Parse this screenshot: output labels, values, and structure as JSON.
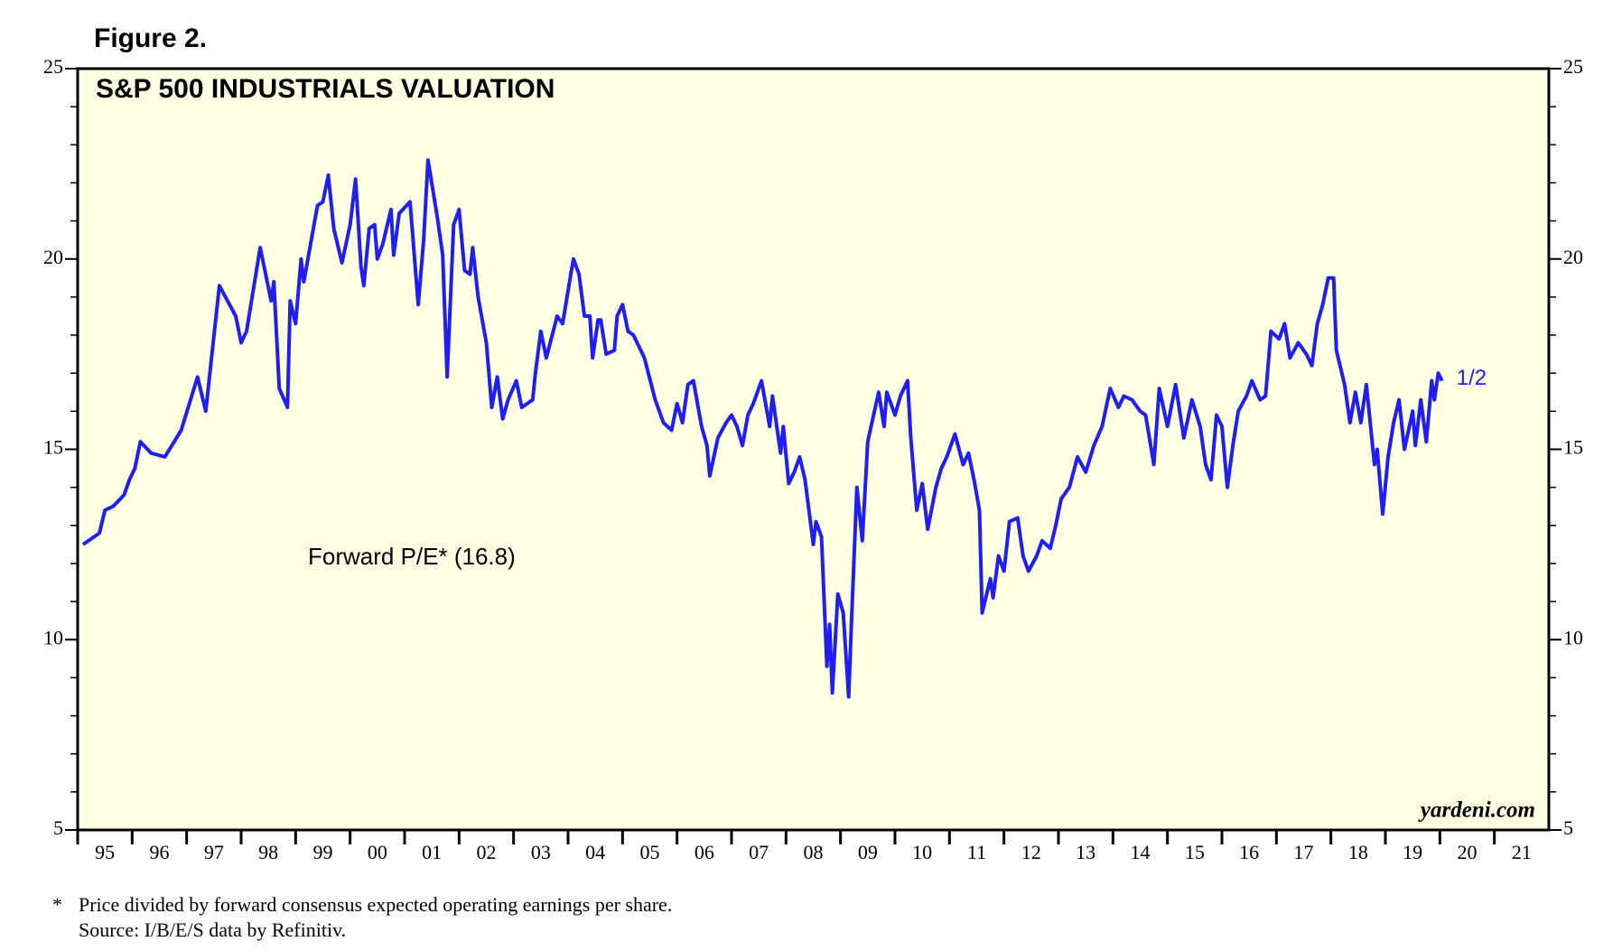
{
  "figure_label": "Figure 2.",
  "chart_data": {
    "type": "line",
    "title": "S&P 500 INDUSTRIALS VALUATION",
    "annotation": "Forward P/E* (16.8)",
    "end_label": "1/2",
    "credit": "yardeni.com",
    "color": "#1f1ff5",
    "background": "#ffffe3",
    "xlim": [
      1995,
      2022
    ],
    "xticks": [
      {
        "value": 1995,
        "label": "95"
      },
      {
        "value": 1996,
        "label": "96"
      },
      {
        "value": 1997,
        "label": "97"
      },
      {
        "value": 1998,
        "label": "98"
      },
      {
        "value": 1999,
        "label": "99"
      },
      {
        "value": 2000,
        "label": "00"
      },
      {
        "value": 2001,
        "label": "01"
      },
      {
        "value": 2002,
        "label": "02"
      },
      {
        "value": 2003,
        "label": "03"
      },
      {
        "value": 2004,
        "label": "04"
      },
      {
        "value": 2005,
        "label": "05"
      },
      {
        "value": 2006,
        "label": "06"
      },
      {
        "value": 2007,
        "label": "07"
      },
      {
        "value": 2008,
        "label": "08"
      },
      {
        "value": 2009,
        "label": "09"
      },
      {
        "value": 2010,
        "label": "10"
      },
      {
        "value": 2011,
        "label": "11"
      },
      {
        "value": 2012,
        "label": "12"
      },
      {
        "value": 2013,
        "label": "13"
      },
      {
        "value": 2014,
        "label": "14"
      },
      {
        "value": 2015,
        "label": "15"
      },
      {
        "value": 2016,
        "label": "16"
      },
      {
        "value": 2017,
        "label": "17"
      },
      {
        "value": 2018,
        "label": "18"
      },
      {
        "value": 2019,
        "label": "19"
      },
      {
        "value": 2020,
        "label": "20"
      },
      {
        "value": 2021,
        "label": "21"
      }
    ],
    "ylim": [
      5,
      25
    ],
    "yticks": [
      5,
      10,
      15,
      20,
      25
    ],
    "x": [
      1995.1,
      1995.4,
      1995.5,
      1995.65,
      1995.85,
      1995.95,
      1996.05,
      1996.15,
      1996.35,
      1996.6,
      1996.9,
      1997.2,
      1997.35,
      1997.6,
      1997.9,
      1998,
      1998.1,
      1998.35,
      1998.55,
      1998.6,
      1998.7,
      1998.85,
      1998.9,
      1999,
      1999.1,
      1999.15,
      1999.4,
      1999.5,
      1999.6,
      1999.7,
      1999.85,
      2000,
      2000.1,
      2000.2,
      2000.25,
      2000.35,
      2000.45,
      2000.5,
      2000.6,
      2000.75,
      2000.8,
      2000.9,
      2001.1,
      2001.25,
      2001.35,
      2001.43,
      2001.6,
      2001.7,
      2001.78,
      2001.9,
      2002,
      2002.1,
      2002.2,
      2002.25,
      2002.35,
      2002.5,
      2002.6,
      2002.7,
      2002.8,
      2002.9,
      2003.05,
      2003.15,
      2003.35,
      2003.4,
      2003.5,
      2003.6,
      2003.8,
      2003.9,
      2004.05,
      2004.1,
      2004.2,
      2004.3,
      2004.4,
      2004.45,
      2004.55,
      2004.6,
      2004.7,
      2004.85,
      2004.9,
      2005,
      2005.1,
      2005.2,
      2005.4,
      2005.6,
      2005.75,
      2005.9,
      2006,
      2006.1,
      2006.2,
      2006.3,
      2006.45,
      2006.55,
      2006.6,
      2006.75,
      2006.9,
      2007,
      2007.1,
      2007.2,
      2007.3,
      2007.4,
      2007.55,
      2007.7,
      2007.75,
      2007.9,
      2007.95,
      2008.05,
      2008.15,
      2008.25,
      2008.35,
      2008.5,
      2008.55,
      2008.65,
      2008.75,
      2008.8,
      2008.85,
      2008.95,
      2009.05,
      2009.15,
      2009.2,
      2009.3,
      2009.4,
      2009.5,
      2009.7,
      2009.8,
      2009.85,
      2010,
      2010.1,
      2010.23,
      2010.29,
      2010.4,
      2010.5,
      2010.6,
      2010.75,
      2010.85,
      2010.95,
      2011.1,
      2011.25,
      2011.35,
      2011.45,
      2011.55,
      2011.6,
      2011.75,
      2011.8,
      2011.9,
      2012,
      2012.1,
      2012.25,
      2012.35,
      2012.45,
      2012.6,
      2012.7,
      2012.85,
      2012.95,
      2013.05,
      2013.2,
      2013.35,
      2013.5,
      2013.65,
      2013.8,
      2013.95,
      2014.1,
      2014.2,
      2014.35,
      2014.5,
      2014.6,
      2014.75,
      2014.85,
      2015,
      2015.15,
      2015.3,
      2015.45,
      2015.6,
      2015.7,
      2015.8,
      2015.9,
      2016,
      2016.1,
      2016.2,
      2016.3,
      2016.45,
      2016.55,
      2016.7,
      2016.8,
      2016.9,
      2017.05,
      2017.15,
      2017.25,
      2017.4,
      2017.55,
      2017.65,
      2017.75,
      2017.85,
      2017.95,
      2018.05,
      2018.1,
      2018.25,
      2018.35,
      2018.45,
      2018.55,
      2018.65,
      2018.8,
      2018.85,
      2018.95,
      2019.05,
      2019.15,
      2019.25,
      2019.35,
      2019.5,
      2019.55,
      2019.65,
      2019.75,
      2019.85,
      2019.9,
      2019.97,
      2020.04
    ],
    "values": [
      12.5,
      12.8,
      13.4,
      13.5,
      13.8,
      14.2,
      14.5,
      15.2,
      14.9,
      14.8,
      15.5,
      16.9,
      16,
      19.3,
      18.5,
      17.8,
      18.1,
      20.3,
      18.9,
      19.4,
      16.6,
      16.1,
      18.9,
      18.3,
      20,
      19.4,
      21.4,
      21.5,
      22.2,
      20.8,
      19.9,
      20.9,
      22.1,
      19.8,
      19.3,
      20.8,
      20.9,
      20,
      20.4,
      21.3,
      20.1,
      21.2,
      21.5,
      18.8,
      20.5,
      22.6,
      21.1,
      20.1,
      16.9,
      20.9,
      21.3,
      19.7,
      19.6,
      20.3,
      19,
      17.8,
      16.1,
      16.9,
      15.8,
      16.3,
      16.8,
      16.1,
      16.3,
      17,
      18.1,
      17.4,
      18.5,
      18.3,
      19.6,
      20,
      19.6,
      18.5,
      18.5,
      17.4,
      18.4,
      18.4,
      17.5,
      17.6,
      18.5,
      18.8,
      18.1,
      18,
      17.4,
      16.3,
      15.7,
      15.5,
      16.2,
      15.7,
      16.7,
      16.8,
      15.6,
      15.1,
      14.3,
      15.3,
      15.7,
      15.9,
      15.6,
      15.1,
      15.9,
      16.2,
      16.8,
      15.6,
      16.4,
      14.9,
      15.6,
      14.1,
      14.4,
      14.8,
      14.2,
      12.5,
      13.1,
      12.7,
      9.3,
      10.4,
      8.6,
      11.2,
      10.7,
      8.5,
      10.4,
      14,
      12.6,
      15.2,
      16.5,
      15.6,
      16.5,
      15.9,
      16.4,
      16.8,
      15.3,
      13.4,
      14.1,
      12.9,
      14,
      14.5,
      14.8,
      15.4,
      14.6,
      14.9,
      14.2,
      13.4,
      10.7,
      11.6,
      11.1,
      12.2,
      11.8,
      13.1,
      13.2,
      12.2,
      11.8,
      12.2,
      12.6,
      12.4,
      13,
      13.7,
      14,
      14.8,
      14.4,
      15.1,
      15.6,
      16.6,
      16.1,
      16.4,
      16.3,
      16,
      15.9,
      14.6,
      16.6,
      15.6,
      16.7,
      15.3,
      16.3,
      15.6,
      14.6,
      14.2,
      15.9,
      15.6,
      14,
      15.1,
      16,
      16.4,
      16.8,
      16.3,
      16.4,
      18.1,
      17.9,
      18.3,
      17.4,
      17.8,
      17.5,
      17.2,
      18.3,
      18.8,
      19.5,
      19.5,
      17.6,
      16.7,
      15.7,
      16.5,
      15.7,
      16.7,
      14.6,
      15,
      13.3,
      14.8,
      15.7,
      16.3,
      15,
      16,
      15.1,
      16.3,
      15.2,
      16.8,
      16.3,
      17,
      16.8
    ]
  },
  "footnote": {
    "marker": "*",
    "lines": [
      "Price divided by forward consensus expected operating earnings per share.",
      "Source: I/B/E/S data by Refinitiv."
    ]
  }
}
